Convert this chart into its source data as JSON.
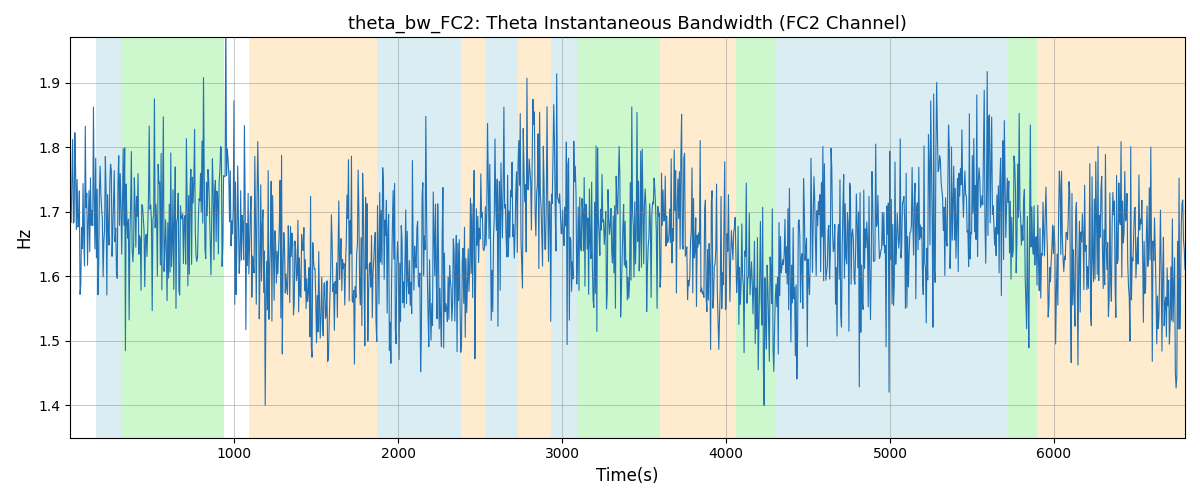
{
  "title": "theta_bw_FC2: Theta Instantaneous Bandwidth (FC2 Channel)",
  "xlabel": "Time(s)",
  "ylabel": "Hz",
  "xlim": [
    0,
    6800
  ],
  "ylim": [
    1.35,
    1.97
  ],
  "figsize": [
    12,
    5
  ],
  "dpi": 100,
  "line_color": "#2171b5",
  "line_width": 0.8,
  "background_bands": [
    {
      "xmin": 155,
      "xmax": 310,
      "color": "#add8e6",
      "alpha": 0.45
    },
    {
      "xmin": 310,
      "xmax": 940,
      "color": "#90ee90",
      "alpha": 0.45
    },
    {
      "xmin": 1090,
      "xmax": 1870,
      "color": "#ffdaa0",
      "alpha": 0.5
    },
    {
      "xmin": 1870,
      "xmax": 2380,
      "color": "#add8e6",
      "alpha": 0.45
    },
    {
      "xmin": 2380,
      "xmax": 2530,
      "color": "#ffdaa0",
      "alpha": 0.5
    },
    {
      "xmin": 2530,
      "xmax": 2730,
      "color": "#add8e6",
      "alpha": 0.45
    },
    {
      "xmin": 2730,
      "xmax": 2930,
      "color": "#ffdaa0",
      "alpha": 0.5
    },
    {
      "xmin": 2930,
      "xmax": 3090,
      "color": "#add8e6",
      "alpha": 0.45
    },
    {
      "xmin": 3090,
      "xmax": 3600,
      "color": "#90ee90",
      "alpha": 0.45
    },
    {
      "xmin": 3600,
      "xmax": 4060,
      "color": "#ffdaa0",
      "alpha": 0.5
    },
    {
      "xmin": 4060,
      "xmax": 4300,
      "color": "#90ee90",
      "alpha": 0.45
    },
    {
      "xmin": 4300,
      "xmax": 4740,
      "color": "#add8e6",
      "alpha": 0.45
    },
    {
      "xmin": 4740,
      "xmax": 5720,
      "color": "#add8e6",
      "alpha": 0.45
    },
    {
      "xmin": 5720,
      "xmax": 5900,
      "color": "#90ee90",
      "alpha": 0.45
    },
    {
      "xmin": 5900,
      "xmax": 6800,
      "color": "#ffdaa0",
      "alpha": 0.5
    }
  ],
  "seed": 42,
  "n_points": 1500,
  "base_freq": 1.65,
  "noise_scale": 0.075
}
